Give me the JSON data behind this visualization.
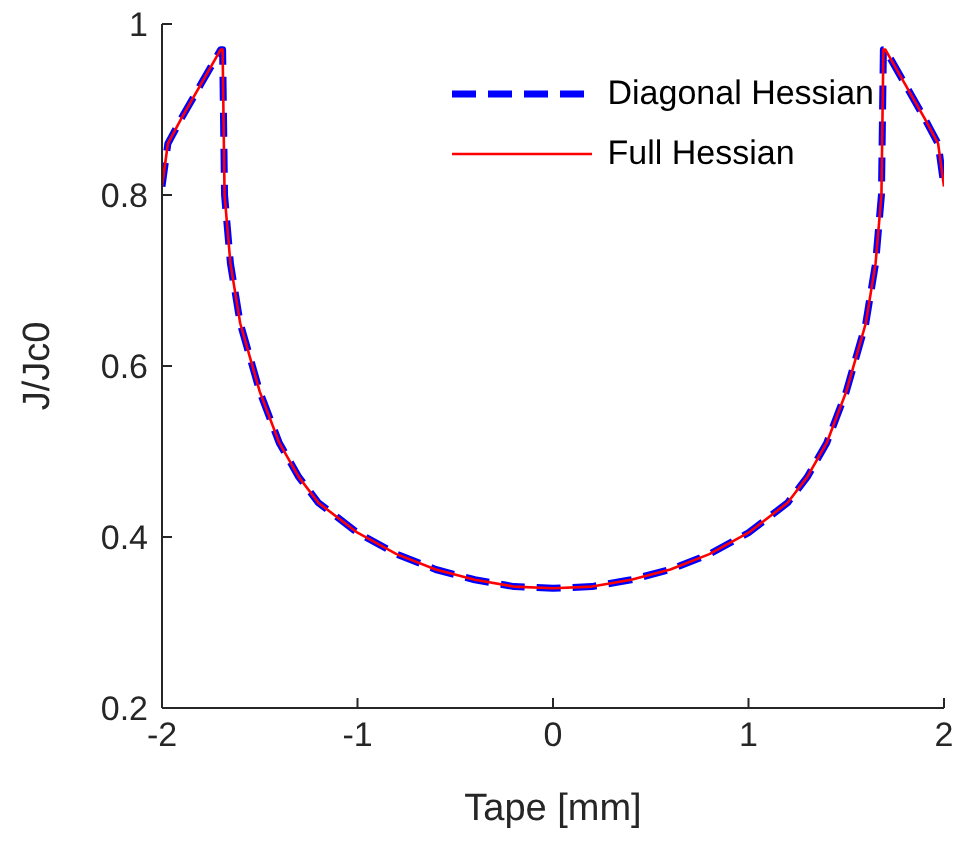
{
  "chart_data": {
    "type": "line",
    "xlabel": "Tape [mm]",
    "ylabel": "J/Jc0",
    "xlim": [
      -2,
      2
    ],
    "xticks": [
      -2,
      -1,
      0,
      1,
      2
    ],
    "ylim": [
      0.2,
      1
    ],
    "yticks": [
      0.2,
      0.4,
      0.6,
      0.8,
      1
    ],
    "legend": "top right",
    "grid": false,
    "marker": "none",
    "x": [
      -2,
      -1.97,
      -1.9,
      -1.8,
      -1.7,
      -1.69,
      -1.68,
      -1.65,
      -1.6,
      -1.5,
      -1.4,
      -1.3,
      -1.2,
      -1,
      -0.8,
      -0.6,
      -0.4,
      -0.2,
      0,
      0.2,
      0.4,
      0.6,
      0.8,
      1,
      1.2,
      1.3,
      1.4,
      1.5,
      1.6,
      1.65,
      1.68,
      1.69,
      1.7,
      1.8,
      1.9,
      1.97,
      2
    ],
    "series": [
      {
        "name": "Diagonal Hessian",
        "color": "#0000ff",
        "line_style": "dashed",
        "values": [
          0.81,
          0.86,
          0.89,
          0.93,
          0.97,
          0.97,
          0.8,
          0.72,
          0.65,
          0.57,
          0.51,
          0.47,
          0.44,
          0.405,
          0.38,
          0.362,
          0.35,
          0.342,
          0.34,
          0.342,
          0.35,
          0.362,
          0.38,
          0.405,
          0.44,
          0.47,
          0.51,
          0.57,
          0.65,
          0.72,
          0.8,
          0.97,
          0.97,
          0.93,
          0.89,
          0.86,
          0.81
        ]
      },
      {
        "name": "Full Hessian",
        "color": "#ff0000",
        "line_style": "solid",
        "values": [
          0.81,
          0.86,
          0.89,
          0.93,
          0.97,
          0.97,
          0.8,
          0.72,
          0.65,
          0.57,
          0.51,
          0.47,
          0.44,
          0.405,
          0.38,
          0.362,
          0.35,
          0.342,
          0.34,
          0.342,
          0.35,
          0.362,
          0.38,
          0.405,
          0.44,
          0.47,
          0.51,
          0.57,
          0.65,
          0.72,
          0.8,
          0.97,
          0.97,
          0.93,
          0.89,
          0.86,
          0.81
        ]
      }
    ]
  }
}
